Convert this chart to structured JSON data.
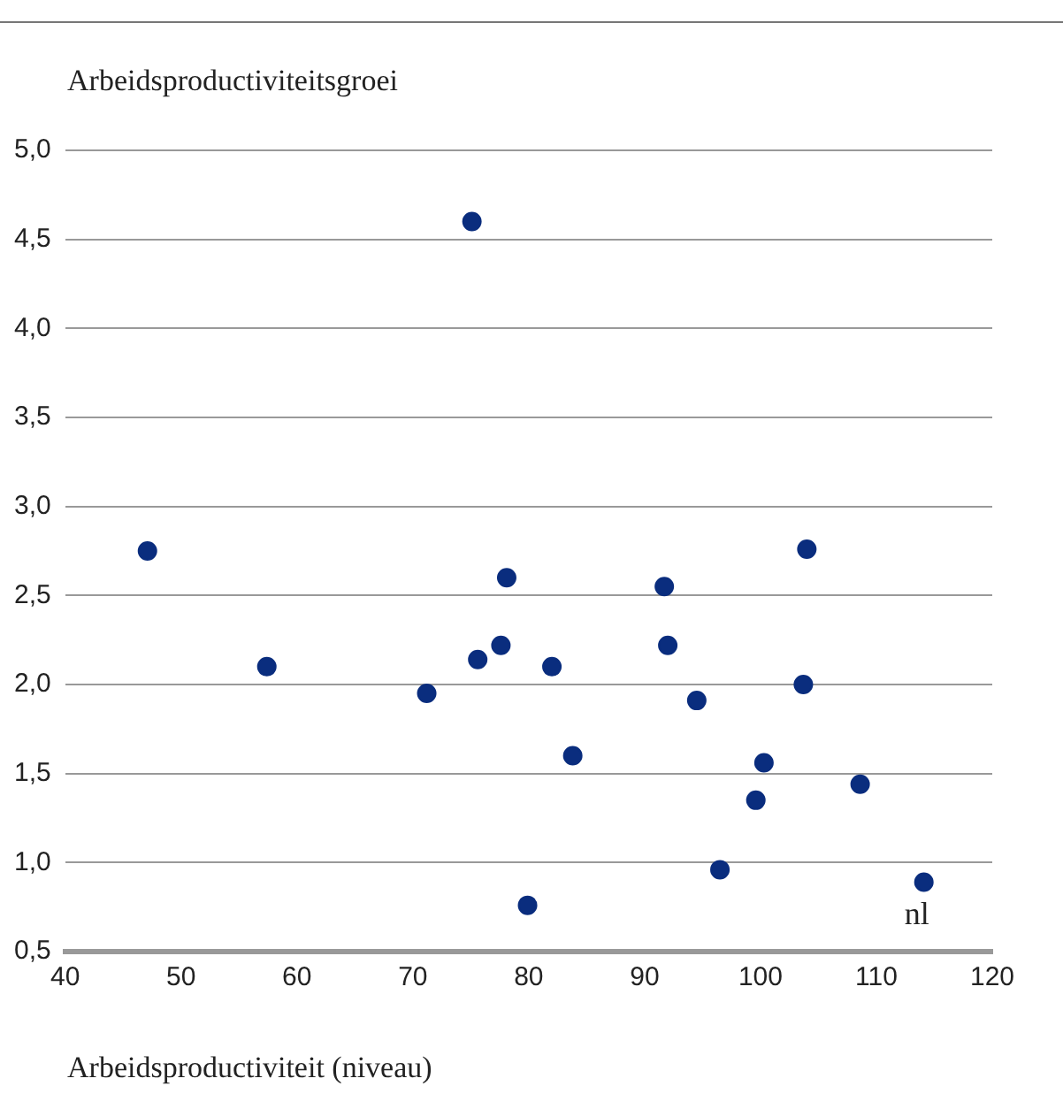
{
  "chart_data": {
    "type": "scatter",
    "ylabel": "Arbeidsproductiviteitsgroei",
    "xlabel": "Arbeidsproductiviteit (niveau)",
    "x": [
      47.1,
      75.1,
      57.4,
      71.2,
      75.6,
      77.6,
      78.1,
      79.9,
      82.0,
      83.8,
      91.7,
      92.0,
      94.5,
      96.5,
      99.6,
      100.3,
      103.7,
      104.0,
      108.6,
      114.1
    ],
    "series": [
      {
        "color": "#0a2d7e",
        "values": [
          2.75,
          4.6,
          2.1,
          1.95,
          2.14,
          2.22,
          2.6,
          0.76,
          2.1,
          1.6,
          2.55,
          2.22,
          1.91,
          0.96,
          1.35,
          1.56,
          2.0,
          2.76,
          1.44,
          0.89
        ]
      }
    ],
    "xlim": [
      40,
      120
    ],
    "xticks": [
      40,
      50,
      60,
      70,
      80,
      90,
      100,
      110,
      120
    ],
    "ylim": [
      0.5,
      5.0
    ],
    "yticks": [
      {
        "value": 0.5,
        "label": "0,5"
      },
      {
        "value": 1.0,
        "label": "1,0"
      },
      {
        "value": 1.5,
        "label": "1,5"
      },
      {
        "value": 2.0,
        "label": "2,0"
      },
      {
        "value": 2.5,
        "label": "2,5"
      },
      {
        "value": 3.0,
        "label": "3,0"
      },
      {
        "value": 3.5,
        "label": "3,5"
      },
      {
        "value": 4.0,
        "label": "4,0"
      },
      {
        "value": 4.5,
        "label": "4,5"
      },
      {
        "value": 5.0,
        "label": "5,0"
      }
    ],
    "annotations": [
      {
        "text": "nl",
        "x": 114.1,
        "y": 0.89
      }
    ],
    "grid": "y",
    "legend": false,
    "marker": "circle"
  }
}
